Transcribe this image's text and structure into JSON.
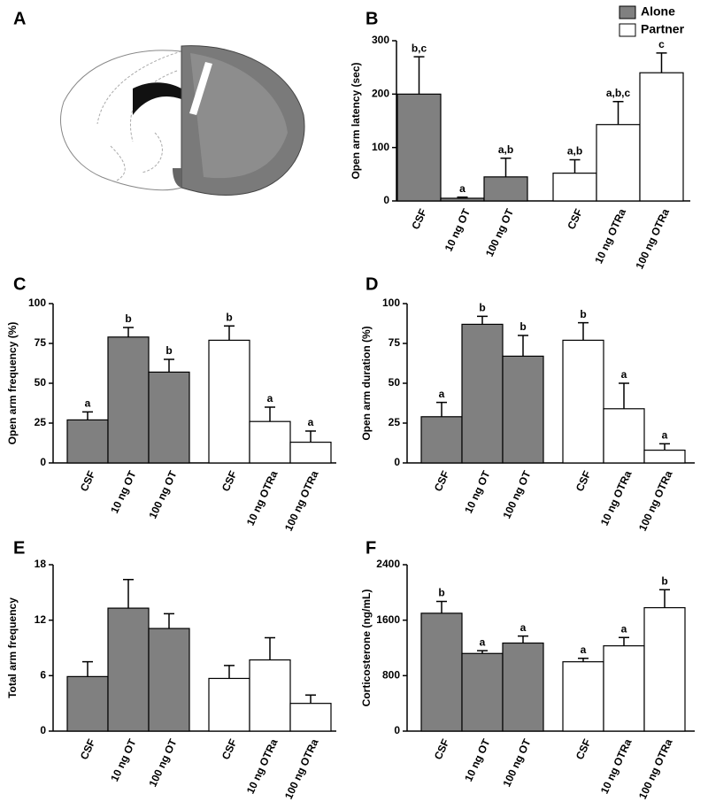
{
  "chart_data": [
    {
      "type": "image",
      "panel": "A"
    },
    {
      "type": "bar",
      "panel": "B",
      "ylabel": "Open arm latency (sec)",
      "categories": [
        "CSF",
        "10 ng OT",
        "100 ng OT",
        "CSF",
        "10 ng OTRa",
        "100 ng OTRa"
      ],
      "series": [
        {
          "name": "Alone",
          "color": "#808080",
          "values": [
            200,
            5,
            45,
            null,
            null,
            null
          ],
          "errors": [
            70,
            2,
            35,
            null,
            null,
            null
          ]
        },
        {
          "name": "Partner",
          "color": "#ffffff",
          "values": [
            null,
            null,
            null,
            52,
            143,
            240
          ],
          "errors": [
            null,
            null,
            null,
            25,
            43,
            37
          ]
        }
      ],
      "annotations": [
        "b,c",
        "a",
        "a,b",
        "a,b",
        "a,b,c",
        "c"
      ],
      "ylim": [
        0,
        300
      ],
      "yticks": [
        0,
        100,
        200,
        300
      ],
      "legend": "upper right"
    },
    {
      "type": "bar",
      "panel": "C",
      "ylabel": "Open arm frequency (%)",
      "categories": [
        "CSF",
        "10 ng OT",
        "100 ng OT",
        "CSF",
        "10 ng OTRa",
        "100 ng OTRa"
      ],
      "series": [
        {
          "color": "#808080",
          "values": [
            27,
            79,
            57,
            null,
            null,
            null
          ],
          "errors": [
            5,
            6,
            8,
            null,
            null,
            null
          ]
        },
        {
          "color": "#ffffff",
          "values": [
            null,
            null,
            null,
            77,
            26,
            13
          ],
          "errors": [
            null,
            null,
            null,
            9,
            9,
            7
          ]
        }
      ],
      "annotations": [
        "a",
        "b",
        "b",
        "b",
        "a",
        "a"
      ],
      "ylim": [
        0,
        100
      ],
      "yticks": [
        0,
        25,
        50,
        75,
        100
      ]
    },
    {
      "type": "bar",
      "panel": "D",
      "ylabel": "Open arm duration (%)",
      "categories": [
        "CSF",
        "10 ng OT",
        "100 ng OT",
        "CSF",
        "10 ng OTRa",
        "100 ng OTRa"
      ],
      "series": [
        {
          "color": "#808080",
          "values": [
            29,
            87,
            67,
            null,
            null,
            null
          ],
          "errors": [
            9,
            5,
            13,
            null,
            null,
            null
          ]
        },
        {
          "color": "#ffffff",
          "values": [
            null,
            null,
            null,
            77,
            34,
            8
          ],
          "errors": [
            null,
            null,
            null,
            11,
            16,
            4
          ]
        }
      ],
      "annotations": [
        "a",
        "b",
        "b",
        "b",
        "a",
        "a"
      ],
      "ylim": [
        0,
        100
      ],
      "yticks": [
        0,
        25,
        50,
        75,
        100
      ]
    },
    {
      "type": "bar",
      "panel": "E",
      "ylabel": "Total arm frequency",
      "categories": [
        "CSF",
        "10 ng OT",
        "100 ng OT",
        "CSF",
        "10 ng OTRa",
        "100 ng OTRa"
      ],
      "series": [
        {
          "color": "#808080",
          "values": [
            5.9,
            13.3,
            11.1,
            null,
            null,
            null
          ],
          "errors": [
            1.6,
            3.1,
            1.6,
            null,
            null,
            null
          ]
        },
        {
          "color": "#ffffff",
          "values": [
            null,
            null,
            null,
            5.7,
            7.7,
            3.0
          ],
          "errors": [
            null,
            null,
            null,
            1.4,
            2.4,
            0.9
          ]
        }
      ],
      "ylim": [
        0,
        18
      ],
      "yticks": [
        0,
        6,
        12,
        18
      ]
    },
    {
      "type": "bar",
      "panel": "F",
      "ylabel": "Corticosterone (ng/mL)",
      "categories": [
        "CSF",
        "10 ng OT",
        "100 ng OT",
        "CSF",
        "10 ng OTRa",
        "100 ng OTRa"
      ],
      "series": [
        {
          "color": "#808080",
          "values": [
            1700,
            1120,
            1270,
            null,
            null,
            null
          ],
          "errors": [
            170,
            40,
            100,
            null,
            null,
            null
          ]
        },
        {
          "color": "#ffffff",
          "values": [
            null,
            null,
            null,
            1000,
            1230,
            1780
          ],
          "errors": [
            null,
            null,
            null,
            50,
            120,
            260
          ]
        }
      ],
      "annotations": [
        "b",
        "a",
        "a",
        "a",
        "a",
        "b"
      ],
      "ylim": [
        0,
        2400
      ],
      "yticks": [
        0,
        800,
        1600,
        2400
      ]
    }
  ]
}
